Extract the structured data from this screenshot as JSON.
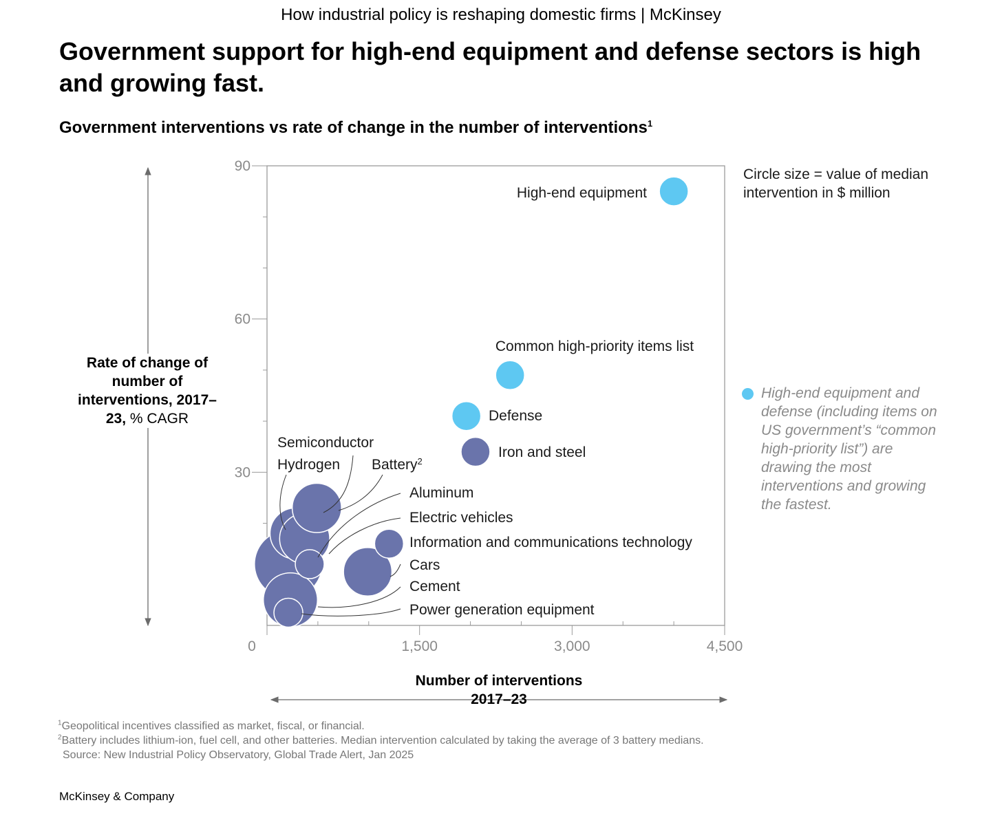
{
  "page": {
    "header": "How industrial policy is reshaping domestic firms | McKinsey",
    "headline": "Government support for high-end equipment and defense sectors is high and growing fast.",
    "subtitle": "Government interventions vs rate of change in the number of interventions",
    "subtitle_sup": "1",
    "size_note": "Circle size = value of median intervention in $ million",
    "legend_text": "High-end equipment and defense (including items on US government’s “common high-priority list”) are drawing the most interventions and growing the fastest.",
    "footnote1_sup": "1",
    "footnote1": "Geopolitical incentives classified as market, fiscal, or financial.",
    "footnote2_sup": "2",
    "footnote2": "Battery includes lithium-ion, fuel cell, and other batteries. Median intervention calculated by taking the average of 3 battery medians.",
    "source": "Source: New Industrial Policy Observatory, Global Trade Alert, Jan 2025",
    "brand": "McKinsey & Company"
  },
  "colors": {
    "highlight": "#5ec8f2",
    "other": "#6a74ab",
    "axis": "#888888",
    "legend_text": "#8a8a8a"
  },
  "chart_data": {
    "type": "scatter",
    "subtitle": "Government interventions vs rate of change in the number of interventions",
    "xlabel_line1": "Number of interventions",
    "xlabel_line2": "2017–23",
    "ylabel_bold": "Rate of change of number of interventions, 2017–23,",
    "ylabel_rest": "% CAGR",
    "xlim": [
      0,
      4500
    ],
    "ylim": [
      0,
      90
    ],
    "x_ticks": [
      0,
      1500,
      3000,
      4500
    ],
    "x_tick_labels": [
      "0",
      "1,500",
      "3,000",
      "4,500"
    ],
    "y_ticks": [
      30,
      60,
      90
    ],
    "y_tick_labels": [
      "30",
      "60",
      "90"
    ],
    "size_encoding": "Circle size = value of median intervention in $ million",
    "points": [
      {
        "label": "High-end equipment",
        "x": 4000,
        "y": 85,
        "size": 1.0,
        "group": "highlight"
      },
      {
        "label": "Common high-priority items list",
        "x": 2390,
        "y": 49,
        "size": 1.0,
        "group": "highlight"
      },
      {
        "label": "Defense",
        "x": 1960,
        "y": 41,
        "size": 1.0,
        "group": "highlight"
      },
      {
        "label": "Iron and steel",
        "x": 2050,
        "y": 34,
        "size": 1.0,
        "group": "other"
      },
      {
        "label": "Semiconductor",
        "x": 490,
        "y": 23,
        "size": 2.9,
        "group": "other"
      },
      {
        "label": "Hydrogen",
        "x": 280,
        "y": 18,
        "size": 3.1,
        "group": "other"
      },
      {
        "label": "Battery",
        "label_sup": "2",
        "x": 370,
        "y": 17,
        "size": 3.0,
        "group": "other"
      },
      {
        "label": "Aluminum",
        "x": 420,
        "y": 12,
        "size": 1.0,
        "group": "other"
      },
      {
        "label": "Electric vehicles",
        "x": 210,
        "y": 12,
        "size": 5.5,
        "group": "other"
      },
      {
        "label": "Information and communications technology",
        "x": 1200,
        "y": 16,
        "size": 1.0,
        "group": "other"
      },
      {
        "label": "Cars",
        "x": 990,
        "y": 10.5,
        "size": 2.8,
        "group": "other"
      },
      {
        "label": "Cement",
        "x": 230,
        "y": 5,
        "size": 3.5,
        "group": "other"
      },
      {
        "label": "Power generation equipment",
        "x": 210,
        "y": 2.5,
        "size": 1.0,
        "group": "other"
      }
    ],
    "grid": false,
    "legend": "right"
  }
}
